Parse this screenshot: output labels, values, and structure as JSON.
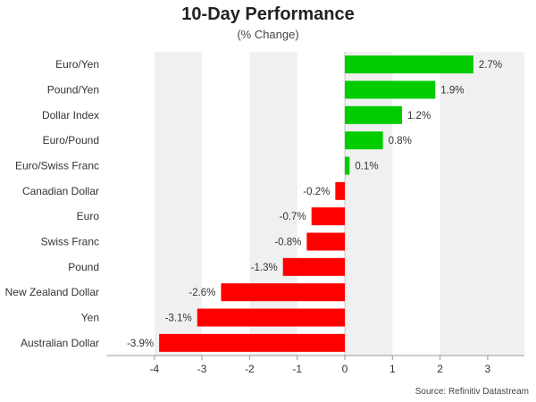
{
  "chart_data": {
    "type": "bar",
    "orientation": "horizontal",
    "title": "10-Day Performance",
    "subtitle": "(% Change)",
    "source": "Source: Refinitiv Datastream",
    "categories": [
      "Euro/Yen",
      "Pound/Yen",
      "Dollar Index",
      "Euro/Pound",
      "Euro/Swiss Franc",
      "Canadian Dollar",
      "Euro",
      "Swiss Franc",
      "Pound",
      "New Zealand Dollar",
      "Yen",
      "Australian Dollar"
    ],
    "values": [
      2.7,
      1.9,
      1.2,
      0.8,
      0.1,
      -0.2,
      -0.7,
      -0.8,
      -1.3,
      -2.6,
      -3.1,
      -3.9
    ],
    "value_labels": [
      "2.7%",
      "1.9%",
      "1.2%",
      "0.8%",
      "0.1%",
      "-0.2%",
      "-0.7%",
      "-0.8%",
      "-1.3%",
      "-2.6%",
      "-3.1%",
      "-3.9%"
    ],
    "xlim": [
      -5,
      3.8
    ],
    "x_ticks": [
      -4,
      -3,
      -2,
      -1,
      0,
      1,
      2,
      3
    ],
    "x_tick_labels": [
      "-4",
      "-3",
      "-2",
      "-1",
      "0",
      "1",
      "2",
      "3"
    ],
    "colors": {
      "positive": "#00cc00",
      "negative": "#ff0000",
      "band": "#f0f0f0"
    },
    "grid": "alternating vertical bands",
    "legend": "none"
  }
}
